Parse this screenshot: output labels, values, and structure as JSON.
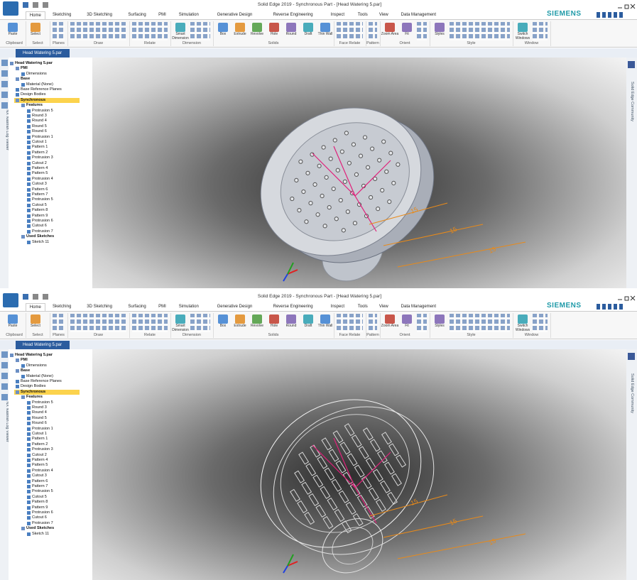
{
  "windows": [
    {
      "title": "Solid Edge 2019 - Synchronous Part - [Head Watering 5.par]",
      "document_tab": "Head Watering 5.par"
    },
    {
      "title": "Solid Edge 2019 - Synchronous Part - [Head Watering 5.par]",
      "document_tab": "Head Watering 5.par"
    }
  ],
  "brand": "SIEMENS",
  "ribbon": {
    "tabs": [
      "Home",
      "Sketching",
      "3D Sketching",
      "Surfacing",
      "PMI",
      "Simulation",
      "Generative Design",
      "Reverse Engineering",
      "Inspect",
      "Tools",
      "View",
      "Data Management"
    ],
    "groups": [
      {
        "label": "Clipboard",
        "buttons": [
          "Paste"
        ]
      },
      {
        "label": "Select",
        "buttons": [
          "Select"
        ]
      },
      {
        "label": "Planes",
        "buttons": []
      },
      {
        "label": "Draw",
        "buttons": []
      },
      {
        "label": "Relate",
        "buttons": []
      },
      {
        "label": "Dimension",
        "buttons": [
          "Smart Dimension"
        ]
      },
      {
        "label": "Solids",
        "buttons": [
          "Box",
          "Extrude",
          "Revolve",
          "Hole",
          "Round",
          "Draft",
          "Thin Wall"
        ]
      },
      {
        "label": "Face Relate",
        "buttons": []
      },
      {
        "label": "Pattern",
        "buttons": []
      },
      {
        "label": "Orient",
        "buttons": [
          "Zoom Area",
          "Fit"
        ]
      },
      {
        "label": "Style",
        "buttons": [
          "Styles"
        ]
      },
      {
        "label": "Window",
        "buttons": [
          "Switch Windows"
        ]
      }
    ]
  },
  "left_panel_title": "NX Nastran Log Viewer",
  "right_panel_title": "Solid Edge Community",
  "tree": {
    "label": "Head Watering 5.par",
    "children": [
      {
        "label": "PMI",
        "children": [
          {
            "label": "Dimensions",
            "children": []
          }
        ]
      },
      {
        "label": "Base",
        "children": [
          {
            "label": "Material (None)",
            "children": []
          }
        ]
      },
      {
        "label": "Base Reference Planes",
        "children": []
      },
      {
        "label": "Design Bodies",
        "children": []
      },
      {
        "label": "Synchronous",
        "selected": true,
        "children": [
          {
            "label": "Features",
            "children": [
              {
                "label": "Protrusion 5",
                "children": []
              },
              {
                "label": "Round 3",
                "children": []
              },
              {
                "label": "Round 4",
                "children": []
              },
              {
                "label": "Round 5",
                "children": []
              },
              {
                "label": "Round 6",
                "children": []
              },
              {
                "label": "Protrusion 1",
                "children": []
              },
              {
                "label": "Cutout 1",
                "children": []
              },
              {
                "label": "Pattern 1",
                "children": []
              },
              {
                "label": "Pattern 2",
                "children": []
              },
              {
                "label": "Protrusion 3",
                "children": []
              },
              {
                "label": "Cutout 2",
                "children": []
              },
              {
                "label": "Pattern 4",
                "children": []
              },
              {
                "label": "Pattern 5",
                "children": []
              },
              {
                "label": "Protrusion 4",
                "children": []
              },
              {
                "label": "Cutout 3",
                "children": []
              },
              {
                "label": "Pattern 6",
                "children": []
              },
              {
                "label": "Pattern 7",
                "children": []
              },
              {
                "label": "Protrusion 5",
                "children": []
              },
              {
                "label": "Cutout 5",
                "children": []
              },
              {
                "label": "Pattern 8",
                "children": []
              },
              {
                "label": "Pattern 9",
                "children": []
              },
              {
                "label": "Protrusion 6",
                "children": []
              },
              {
                "label": "Cutout 6",
                "children": []
              },
              {
                "label": "Protrusion 7",
                "children": []
              }
            ]
          },
          {
            "label": "Used Sketches",
            "children": [
              {
                "label": "Sketch 11",
                "children": []
              }
            ]
          }
        ]
      }
    ]
  },
  "dimension_labels": [
    "15",
    "15",
    "15"
  ]
}
